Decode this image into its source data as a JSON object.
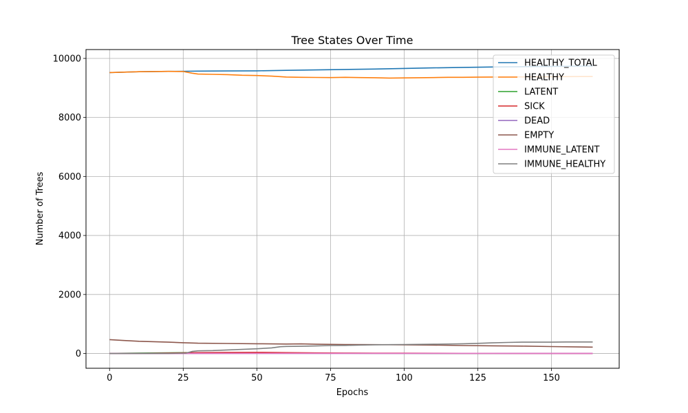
{
  "chart_data": {
    "type": "line",
    "title": "Tree States Over Time",
    "xlabel": "Epochs",
    "ylabel": "Number of Trees",
    "xlim": [
      -8,
      173
    ],
    "ylim": [
      -500,
      10300
    ],
    "x_ticks": [
      0,
      25,
      50,
      75,
      100,
      125,
      150
    ],
    "y_ticks": [
      0,
      2000,
      4000,
      6000,
      8000,
      10000
    ],
    "x_tick_labels": [
      "0",
      "25",
      "50",
      "75",
      "100",
      "125",
      "150"
    ],
    "y_tick_labels": [
      "0",
      "2000",
      "4000",
      "6000",
      "8000",
      "10000"
    ],
    "grid": true,
    "legend_position": "top-right",
    "series": [
      {
        "name": "HEALTHY_TOTAL",
        "color": "#1f77b4",
        "x": [
          0,
          10,
          20,
          26,
          30,
          40,
          50,
          60,
          70,
          80,
          90,
          100,
          110,
          120,
          130,
          140,
          150,
          160,
          164
        ],
        "y": [
          9520,
          9550,
          9560,
          9565,
          9570,
          9575,
          9580,
          9595,
          9610,
          9625,
          9640,
          9660,
          9680,
          9695,
          9710,
          9720,
          9730,
          9740,
          9745
        ]
      },
      {
        "name": "HEALTHY",
        "color": "#ff7f0e",
        "x": [
          0,
          10,
          20,
          25,
          28,
          30,
          35,
          40,
          45,
          50,
          55,
          60,
          65,
          70,
          75,
          80,
          85,
          90,
          95,
          100,
          105,
          110,
          115,
          120,
          125,
          130,
          140,
          150,
          160,
          164
        ],
        "y": [
          9520,
          9550,
          9560,
          9555,
          9500,
          9470,
          9460,
          9450,
          9430,
          9420,
          9400,
          9370,
          9360,
          9355,
          9350,
          9360,
          9350,
          9345,
          9335,
          9340,
          9345,
          9350,
          9360,
          9360,
          9365,
          9370,
          9375,
          9380,
          9385,
          9385
        ]
      },
      {
        "name": "LATENT",
        "color": "#2ca02c",
        "x": [
          0,
          10,
          20,
          26,
          30,
          40,
          50,
          60,
          70,
          80,
          90,
          100,
          110,
          120,
          130,
          140,
          150,
          160,
          164
        ],
        "y": [
          5,
          15,
          25,
          30,
          25,
          20,
          15,
          12,
          10,
          8,
          7,
          6,
          5,
          5,
          4,
          4,
          3,
          3,
          3
        ]
      },
      {
        "name": "SICK",
        "color": "#d62728",
        "x": [
          0,
          10,
          20,
          30,
          40,
          50,
          60,
          70,
          80,
          90,
          100,
          110,
          120,
          130,
          140,
          150,
          160,
          164
        ],
        "y": [
          0,
          5,
          15,
          30,
          35,
          40,
          30,
          20,
          15,
          12,
          10,
          8,
          7,
          6,
          5,
          5,
          4,
          4
        ]
      },
      {
        "name": "DEAD",
        "color": "#9467bd",
        "x": [
          0,
          20,
          40,
          60,
          80,
          100,
          120,
          140,
          164
        ],
        "y": [
          0,
          0,
          2,
          3,
          3,
          3,
          3,
          3,
          3
        ]
      },
      {
        "name": "EMPTY",
        "color": "#8c564b",
        "x": [
          0,
          5,
          10,
          15,
          20,
          25,
          30,
          40,
          50,
          60,
          65,
          70,
          80,
          90,
          100,
          110,
          120,
          130,
          140,
          150,
          160,
          164
        ],
        "y": [
          470,
          440,
          415,
          400,
          385,
          365,
          350,
          340,
          330,
          320,
          325,
          315,
          305,
          300,
          295,
          285,
          270,
          260,
          250,
          235,
          220,
          215
        ]
      },
      {
        "name": "IMMUNE_LATENT",
        "color": "#e377c2",
        "x": [
          0,
          25,
          30,
          40,
          60,
          80,
          100,
          120,
          140,
          164
        ],
        "y": [
          0,
          0,
          5,
          5,
          6,
          6,
          6,
          6,
          5,
          5
        ]
      },
      {
        "name": "IMMUNE_HEALTHY",
        "color": "#7f7f7f",
        "x": [
          0,
          20,
          26,
          28,
          30,
          35,
          40,
          45,
          50,
          55,
          58,
          60,
          65,
          70,
          75,
          80,
          85,
          90,
          95,
          100,
          105,
          110,
          115,
          120,
          125,
          130,
          135,
          140,
          150,
          155,
          160,
          164
        ],
        "y": [
          0,
          5,
          15,
          70,
          90,
          100,
          120,
          140,
          160,
          190,
          230,
          240,
          245,
          255,
          270,
          275,
          285,
          295,
          300,
          305,
          310,
          315,
          320,
          330,
          345,
          360,
          375,
          385,
          385,
          390,
          390,
          390
        ]
      }
    ]
  }
}
